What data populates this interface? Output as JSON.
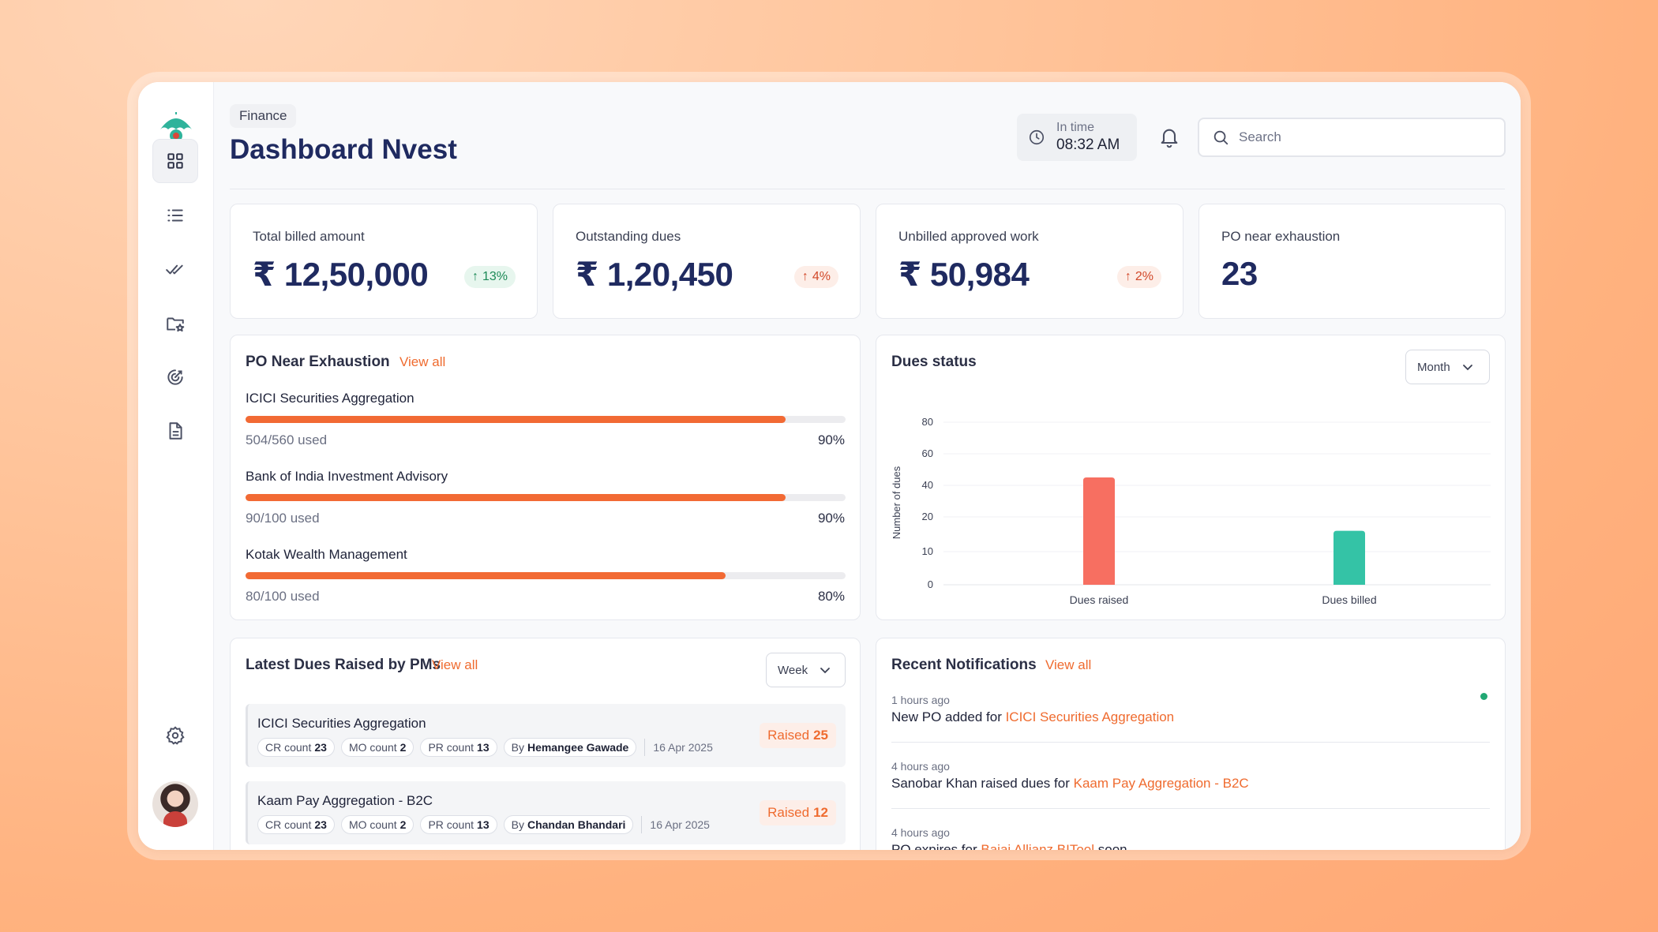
{
  "header": {
    "breadcrumb": "Finance",
    "title": "Dashboard Nvest",
    "time_label": "In time",
    "time_value": "08:32 AM",
    "search_placeholder": "Search"
  },
  "sidebar": {
    "items": [
      {
        "name": "dashboard",
        "icon": "grid-icon",
        "active": true
      },
      {
        "name": "list",
        "icon": "list-icon",
        "active": false
      },
      {
        "name": "approvals",
        "icon": "double-check-icon",
        "active": false
      },
      {
        "name": "folders",
        "icon": "folder-star-icon",
        "active": false
      },
      {
        "name": "targets",
        "icon": "target-icon",
        "active": false
      },
      {
        "name": "documents",
        "icon": "document-icon",
        "active": false
      }
    ],
    "settings_icon": "gear-icon",
    "avatar": "user-avatar"
  },
  "stats": [
    {
      "label": "Total billed amount",
      "value": "₹ 12,50,000",
      "badge": "13%",
      "trend": "up",
      "tone": "green"
    },
    {
      "label": "Outstanding dues",
      "value": "₹ 1,20,450",
      "badge": "4%",
      "trend": "up",
      "tone": "red"
    },
    {
      "label": "Unbilled approved work",
      "value": "₹ 50,984",
      "badge": "2%",
      "trend": "up",
      "tone": "red"
    },
    {
      "label": "PO near exhaustion",
      "value": "23"
    }
  ],
  "po_exhaustion": {
    "title": "PO Near Exhaustion",
    "view_all": "View all",
    "items": [
      {
        "name": "ICICI Securities Aggregation",
        "used": "504/560 used",
        "percent": "90%",
        "fill": 0.9
      },
      {
        "name": "Bank of India Investment Advisory",
        "used": "90/100 used",
        "percent": "90%",
        "fill": 0.9
      },
      {
        "name": "Kotak Wealth Management",
        "used": "80/100 used",
        "percent": "80%",
        "fill": 0.8
      }
    ]
  },
  "dues_status": {
    "title": "Dues status",
    "period": "Month"
  },
  "chart_data": {
    "type": "bar",
    "title": "Dues status",
    "categories": [
      "Dues raised",
      "Dues billed"
    ],
    "values": [
      45,
      16
    ],
    "colors": [
      "#f76f61",
      "#34c3a6"
    ],
    "ylabel": "Number of dues",
    "xlabel": "",
    "yticks": [
      0,
      10,
      20,
      40,
      60,
      80
    ],
    "ylim": [
      0,
      80
    ],
    "grid": "horizontal"
  },
  "latest_dues": {
    "title": "Latest Dues Raised by PMs",
    "view_all": "View all",
    "period": "Week",
    "items": [
      {
        "name": "ICICI Securities Aggregation",
        "cr_label": "CR count",
        "cr": "23",
        "mo_label": "MO count",
        "mo": "2",
        "pr_label": "PR count",
        "pr": "13",
        "by_label": "By",
        "by": "Hemangee Gawade",
        "date": "16 Apr 2025",
        "raised_label": "Raised",
        "raised": "25"
      },
      {
        "name": "Kaam Pay Aggregation - B2C",
        "cr_label": "CR count",
        "cr": "23",
        "mo_label": "MO count",
        "mo": "2",
        "pr_label": "PR count",
        "pr": "13",
        "by_label": "By",
        "by": "Chandan Bhandari",
        "date": "16 Apr 2025",
        "raised_label": "Raised",
        "raised": "12"
      }
    ]
  },
  "notifications": {
    "title": "Recent Notifications",
    "view_all": "View all",
    "items": [
      {
        "time": "1 hours ago",
        "text": "New PO added for ",
        "link": "ICICI Securities Aggregation",
        "suffix": "",
        "unread": true
      },
      {
        "time": "4 hours ago",
        "text": "Sanobar Khan raised dues for ",
        "link": "Kaam Pay Aggregation - B2C",
        "suffix": "",
        "unread": false
      },
      {
        "time": "4 hours ago",
        "text": "PO expires for ",
        "link": "Bajaj Allianz BITool",
        "suffix": " soon",
        "unread": false
      }
    ]
  },
  "colors": {
    "accent": "#ef6b2f",
    "title": "#1f2a60",
    "green": "#1d8a57",
    "red": "#d2492a"
  }
}
